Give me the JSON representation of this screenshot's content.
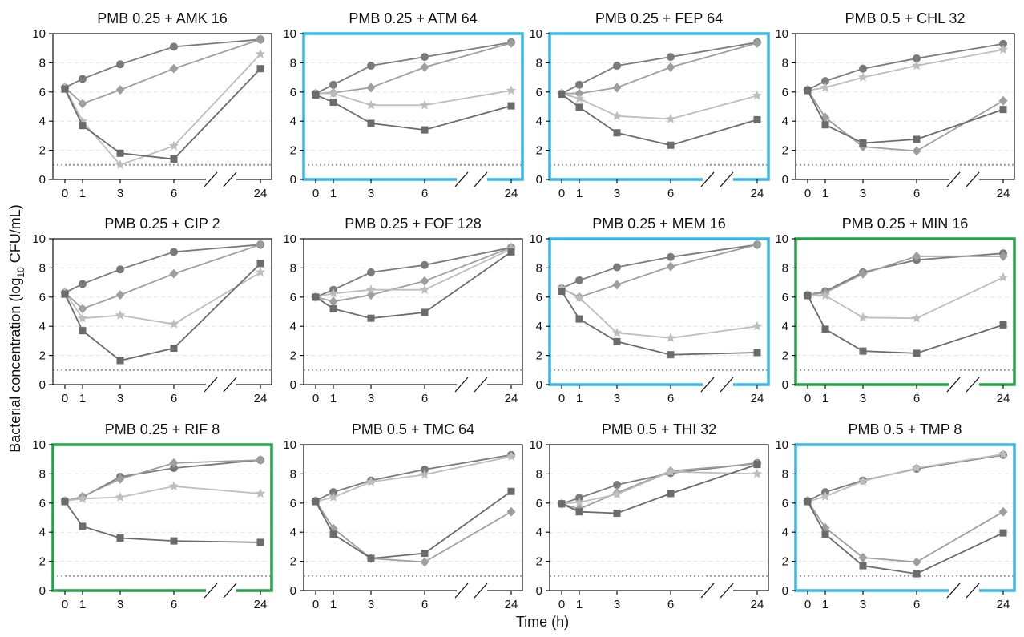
{
  "figure": {
    "ylabel_prefix": "Bacterial concentration (log",
    "ylabel_sub": "10",
    "ylabel_suffix": " CFU/mL)",
    "xlabel": "Time (h)"
  },
  "colors": {
    "series_1_circle": "#7a7a7a",
    "series_2_diamond": "#9e9e9e",
    "series_3_star": "#bdbdbd",
    "series_4_square": "#6b6b6b",
    "frame_default": "#111111",
    "frame_blue": "#3ab6e3",
    "frame_green": "#27a04a",
    "limit_line": "#999999",
    "gridline": "#e2e2e2"
  },
  "chart_data": [
    {
      "type": "line",
      "title": "PMB 0.25 + AMK 16",
      "frame": "default",
      "x": [
        0,
        1,
        3,
        6,
        24
      ],
      "x_ticks": [
        "0",
        "1",
        "3",
        "6",
        "24"
      ],
      "axis_break": "between 6 and 24",
      "ylim": [
        0,
        10
      ],
      "y_ticks": [
        "0",
        "2",
        "4",
        "6",
        "8",
        "10"
      ],
      "detection_limit": 1,
      "grid": "horizontal dashed",
      "series": [
        {
          "marker": "circle",
          "values": [
            6.3,
            6.9,
            7.9,
            9.1,
            9.6
          ]
        },
        {
          "marker": "diamond",
          "values": [
            6.3,
            5.2,
            6.15,
            7.6,
            9.6
          ]
        },
        {
          "marker": "star",
          "values": [
            6.3,
            4.0,
            1.0,
            2.3,
            8.6
          ]
        },
        {
          "marker": "square",
          "values": [
            6.2,
            3.7,
            1.8,
            1.4,
            7.6
          ]
        }
      ]
    },
    {
      "type": "line",
      "title": "PMB 0.25 + ATM 64",
      "frame": "blue",
      "x": [
        0,
        1,
        3,
        6,
        24
      ],
      "x_ticks": [
        "0",
        "1",
        "3",
        "6",
        "24"
      ],
      "axis_break": "between 6 and 24",
      "ylim": [
        0,
        10
      ],
      "y_ticks": [
        "0",
        "2",
        "4",
        "6",
        "8",
        "10"
      ],
      "detection_limit": 1,
      "grid": "horizontal dashed",
      "series": [
        {
          "marker": "circle",
          "values": [
            5.9,
            6.5,
            7.8,
            8.4,
            9.4
          ]
        },
        {
          "marker": "diamond",
          "values": [
            5.9,
            5.95,
            6.3,
            7.7,
            9.35
          ]
        },
        {
          "marker": "star",
          "values": [
            5.9,
            5.9,
            5.1,
            5.1,
            6.1
          ]
        },
        {
          "marker": "square",
          "values": [
            5.8,
            5.3,
            3.85,
            3.4,
            5.05
          ]
        }
      ]
    },
    {
      "type": "line",
      "title": "PMB 0.25 + FEP 64",
      "frame": "blue",
      "x": [
        0,
        1,
        3,
        6,
        24
      ],
      "x_ticks": [
        "0",
        "1",
        "3",
        "6",
        "24"
      ],
      "axis_break": "between 6 and 24",
      "ylim": [
        0,
        10
      ],
      "y_ticks": [
        "0",
        "2",
        "4",
        "6",
        "8",
        "10"
      ],
      "detection_limit": 1,
      "grid": "horizontal dashed",
      "series": [
        {
          "marker": "circle",
          "values": [
            5.9,
            6.5,
            7.8,
            8.4,
            9.4
          ]
        },
        {
          "marker": "diamond",
          "values": [
            5.9,
            5.9,
            6.3,
            7.7,
            9.35
          ]
        },
        {
          "marker": "star",
          "values": [
            5.9,
            5.55,
            4.35,
            4.15,
            5.75
          ]
        },
        {
          "marker": "square",
          "values": [
            5.85,
            4.95,
            3.2,
            2.35,
            4.1
          ]
        }
      ]
    },
    {
      "type": "line",
      "title": "PMB 0.5 + CHL 32",
      "frame": "default",
      "x": [
        0,
        1,
        3,
        6,
        24
      ],
      "x_ticks": [
        "0",
        "1",
        "3",
        "6",
        "24"
      ],
      "axis_break": "between 6 and 24",
      "ylim": [
        0,
        10
      ],
      "y_ticks": [
        "0",
        "2",
        "4",
        "6",
        "8",
        "10"
      ],
      "detection_limit": 1,
      "grid": "horizontal dashed",
      "series": [
        {
          "marker": "circle",
          "values": [
            6.15,
            6.75,
            7.6,
            8.3,
            9.3
          ]
        },
        {
          "marker": "star",
          "values": [
            6.1,
            6.3,
            7.0,
            7.8,
            8.9
          ]
        },
        {
          "marker": "diamond",
          "values": [
            6.15,
            4.25,
            2.25,
            1.95,
            5.4
          ]
        },
        {
          "marker": "square",
          "values": [
            6.1,
            3.75,
            2.5,
            2.75,
            4.8
          ]
        }
      ]
    },
    {
      "type": "line",
      "title": "PMB 0.25 + CIP 2",
      "frame": "default",
      "x": [
        0,
        1,
        3,
        6,
        24
      ],
      "x_ticks": [
        "0",
        "1",
        "3",
        "6",
        "24"
      ],
      "axis_break": "between 6 and 24",
      "ylim": [
        0,
        10
      ],
      "y_ticks": [
        "0",
        "2",
        "4",
        "6",
        "8",
        "10"
      ],
      "detection_limit": 1,
      "grid": "horizontal dashed",
      "series": [
        {
          "marker": "circle",
          "values": [
            6.3,
            6.9,
            7.9,
            9.1,
            9.6
          ]
        },
        {
          "marker": "diamond",
          "values": [
            6.3,
            5.2,
            6.15,
            7.6,
            9.6
          ]
        },
        {
          "marker": "star",
          "values": [
            6.3,
            4.55,
            4.75,
            4.15,
            7.7
          ]
        },
        {
          "marker": "square",
          "values": [
            6.2,
            3.7,
            1.65,
            2.5,
            8.3
          ]
        }
      ]
    },
    {
      "type": "line",
      "title": "PMB 0.25 + FOF 128",
      "frame": "default",
      "x": [
        0,
        1,
        3,
        6,
        24
      ],
      "x_ticks": [
        "0",
        "1",
        "3",
        "6",
        "24"
      ],
      "axis_break": "between 6 and 24",
      "ylim": [
        0,
        10
      ],
      "y_ticks": [
        "0",
        "2",
        "4",
        "6",
        "8",
        "10"
      ],
      "detection_limit": 1,
      "grid": "horizontal dashed",
      "series": [
        {
          "marker": "circle",
          "values": [
            6.0,
            6.5,
            7.7,
            8.2,
            9.4
          ]
        },
        {
          "marker": "diamond",
          "values": [
            6.0,
            5.7,
            6.15,
            7.1,
            9.4
          ]
        },
        {
          "marker": "star",
          "values": [
            6.0,
            6.25,
            6.5,
            6.5,
            9.3
          ]
        },
        {
          "marker": "square",
          "values": [
            6.0,
            5.2,
            4.55,
            4.95,
            9.1
          ]
        }
      ]
    },
    {
      "type": "line",
      "title": "PMB 0.25 + MEM 16",
      "frame": "blue",
      "x": [
        0,
        1,
        3,
        6,
        24
      ],
      "x_ticks": [
        "0",
        "1",
        "3",
        "6",
        "24"
      ],
      "axis_break": "between 6 and 24",
      "ylim": [
        0,
        10
      ],
      "y_ticks": [
        "0",
        "2",
        "4",
        "6",
        "8",
        "10"
      ],
      "detection_limit": 1,
      "grid": "horizontal dashed",
      "series": [
        {
          "marker": "circle",
          "values": [
            6.6,
            7.15,
            8.05,
            8.75,
            9.6
          ]
        },
        {
          "marker": "diamond",
          "values": [
            6.6,
            6.0,
            6.85,
            8.1,
            9.6
          ]
        },
        {
          "marker": "star",
          "values": [
            6.6,
            5.95,
            3.55,
            3.2,
            4.0
          ]
        },
        {
          "marker": "square",
          "values": [
            6.4,
            4.5,
            2.95,
            2.05,
            2.2
          ]
        }
      ]
    },
    {
      "type": "line",
      "title": "PMB 0.25 + MIN 16",
      "frame": "green",
      "x": [
        0,
        1,
        3,
        6,
        24
      ],
      "x_ticks": [
        "0",
        "1",
        "3",
        "6",
        "24"
      ],
      "axis_break": "between 6 and 24",
      "ylim": [
        0,
        10
      ],
      "y_ticks": [
        "0",
        "2",
        "4",
        "6",
        "8",
        "10"
      ],
      "detection_limit": 1,
      "grid": "horizontal dashed",
      "series": [
        {
          "marker": "circle",
          "values": [
            6.15,
            6.4,
            7.7,
            8.55,
            9.0
          ]
        },
        {
          "marker": "diamond",
          "values": [
            6.15,
            6.3,
            7.6,
            8.8,
            8.8
          ]
        },
        {
          "marker": "star",
          "values": [
            6.15,
            6.1,
            4.6,
            4.55,
            7.35
          ]
        },
        {
          "marker": "square",
          "values": [
            6.1,
            3.8,
            2.3,
            2.15,
            4.1
          ]
        }
      ]
    },
    {
      "type": "line",
      "title": "PMB 0.25 + RIF 8",
      "frame": "green",
      "x": [
        0,
        1,
        3,
        6,
        24
      ],
      "x_ticks": [
        "0",
        "1",
        "3",
        "6",
        "24"
      ],
      "axis_break": "between 6 and 24",
      "ylim": [
        0,
        10
      ],
      "y_ticks": [
        "0",
        "2",
        "4",
        "6",
        "8",
        "10"
      ],
      "detection_limit": 1,
      "grid": "horizontal dashed",
      "series": [
        {
          "marker": "circle",
          "values": [
            6.15,
            6.4,
            7.8,
            8.4,
            8.95
          ]
        },
        {
          "marker": "diamond",
          "values": [
            6.15,
            6.45,
            7.65,
            8.75,
            8.95
          ]
        },
        {
          "marker": "star",
          "values": [
            6.15,
            6.3,
            6.4,
            7.15,
            6.65
          ]
        },
        {
          "marker": "square",
          "values": [
            6.1,
            4.4,
            3.6,
            3.4,
            3.3
          ]
        }
      ]
    },
    {
      "type": "line",
      "title": "PMB 0.5 + TMC 64",
      "frame": "default",
      "x": [
        0,
        1,
        3,
        6,
        24
      ],
      "x_ticks": [
        "0",
        "1",
        "3",
        "6",
        "24"
      ],
      "axis_break": "between 6 and 24",
      "ylim": [
        0,
        10
      ],
      "y_ticks": [
        "0",
        "2",
        "4",
        "6",
        "8",
        "10"
      ],
      "detection_limit": 1,
      "grid": "horizontal dashed",
      "series": [
        {
          "marker": "circle",
          "values": [
            6.15,
            6.75,
            7.55,
            8.3,
            9.3
          ]
        },
        {
          "marker": "star",
          "values": [
            6.1,
            6.4,
            7.45,
            7.95,
            9.2
          ]
        },
        {
          "marker": "diamond",
          "values": [
            6.15,
            4.25,
            2.2,
            1.95,
            5.4
          ]
        },
        {
          "marker": "square",
          "values": [
            6.1,
            3.85,
            2.2,
            2.55,
            6.8
          ]
        }
      ]
    },
    {
      "type": "line",
      "title": "PMB 0.5 + THI 32",
      "frame": "default",
      "x": [
        0,
        1,
        3,
        6,
        24
      ],
      "x_ticks": [
        "0",
        "1",
        "3",
        "6",
        "24"
      ],
      "axis_break": "between 6 and 24",
      "ylim": [
        0,
        10
      ],
      "y_ticks": [
        "0",
        "2",
        "4",
        "6",
        "8",
        "10"
      ],
      "detection_limit": 1,
      "grid": "horizontal dashed",
      "series": [
        {
          "marker": "circle",
          "values": [
            5.95,
            6.35,
            7.25,
            8.05,
            8.75
          ]
        },
        {
          "marker": "diamond",
          "values": [
            5.95,
            5.6,
            6.7,
            8.2,
            8.7
          ]
        },
        {
          "marker": "star",
          "values": [
            5.95,
            6.05,
            6.6,
            8.15,
            8.0
          ]
        },
        {
          "marker": "square",
          "values": [
            5.95,
            5.4,
            5.3,
            6.65,
            8.65
          ]
        }
      ]
    },
    {
      "type": "line",
      "title": "PMB 0.5 + TMP 8",
      "frame": "blue",
      "x": [
        0,
        1,
        3,
        6,
        24
      ],
      "x_ticks": [
        "0",
        "1",
        "3",
        "6",
        "24"
      ],
      "axis_break": "between 6 and 24",
      "ylim": [
        0,
        10
      ],
      "y_ticks": [
        "0",
        "2",
        "4",
        "6",
        "8",
        "10"
      ],
      "detection_limit": 1,
      "grid": "horizontal dashed",
      "series": [
        {
          "marker": "circle",
          "values": [
            6.15,
            6.75,
            7.55,
            8.35,
            9.3
          ]
        },
        {
          "marker": "star",
          "values": [
            6.1,
            6.45,
            7.5,
            8.4,
            9.35
          ]
        },
        {
          "marker": "diamond",
          "values": [
            6.15,
            4.3,
            2.25,
            1.95,
            5.4
          ]
        },
        {
          "marker": "square",
          "values": [
            6.1,
            3.85,
            1.7,
            1.15,
            3.95
          ]
        }
      ]
    }
  ]
}
